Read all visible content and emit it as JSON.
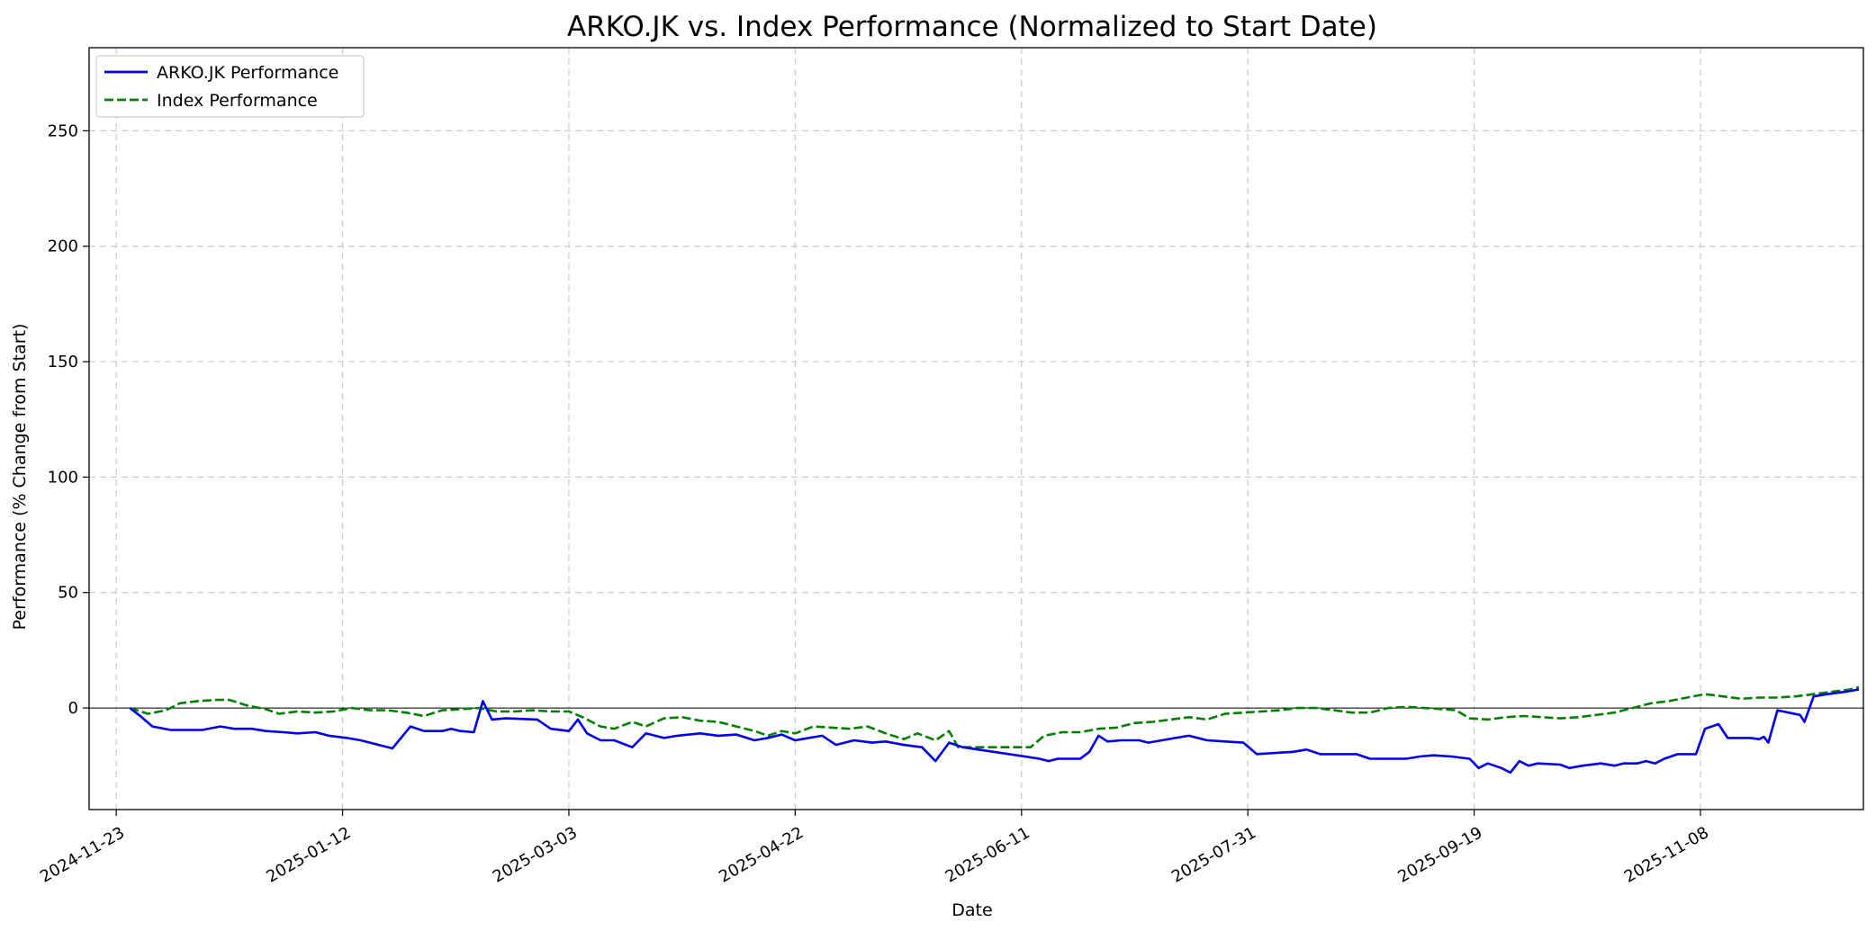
{
  "chart_data": {
    "type": "line",
    "title": "ARKO.JK vs. Index Performance (Normalized to Start Date)",
    "xlabel": "Date",
    "ylabel": "Performance (% Change from Start)",
    "xlim": [
      "2024-11-17",
      "2025-12-14"
    ],
    "ylim": [
      -44,
      286
    ],
    "x_ticks": [
      "2024-11-23",
      "2025-01-12",
      "2025-03-03",
      "2025-04-22",
      "2025-06-11",
      "2025-07-31",
      "2025-09-19",
      "2025-11-08"
    ],
    "y_ticks": [
      0,
      50,
      100,
      150,
      200,
      250
    ],
    "grid": true,
    "zero_line": true,
    "legend_position": "upper-left",
    "colors": {
      "arko": "#0000ee",
      "index": "#008000"
    },
    "series": [
      {
        "name": "ARKO.JK Performance",
        "style": "solid",
        "points": [
          [
            "2024-11-26",
            0
          ],
          [
            "2024-11-28",
            -3
          ],
          [
            "2024-12-01",
            -8
          ],
          [
            "2024-12-05",
            -9.5
          ],
          [
            "2024-12-08",
            -9.5
          ],
          [
            "2024-12-12",
            -9.5
          ],
          [
            "2024-12-16",
            -8
          ],
          [
            "2024-12-19",
            -9
          ],
          [
            "2024-12-23",
            -9
          ],
          [
            "2024-12-26",
            -10
          ],
          [
            "2024-12-30",
            -10.5
          ],
          [
            "2025-01-02",
            -11
          ],
          [
            "2025-01-06",
            -10.5
          ],
          [
            "2025-01-09",
            -12
          ],
          [
            "2025-01-13",
            -13
          ],
          [
            "2025-01-16",
            -14
          ],
          [
            "2025-01-20",
            -16
          ],
          [
            "2025-01-23",
            -17.5
          ],
          [
            "2025-01-27",
            -8
          ],
          [
            "2025-01-30",
            -10
          ],
          [
            "2025-02-03",
            -10
          ],
          [
            "2025-02-05",
            -9
          ],
          [
            "2025-02-07",
            -10
          ],
          [
            "2025-02-10",
            -10.5
          ],
          [
            "2025-02-12",
            3
          ],
          [
            "2025-02-14",
            -5
          ],
          [
            "2025-02-17",
            -4.5
          ],
          [
            "2025-02-24",
            -5
          ],
          [
            "2025-02-27",
            -9
          ],
          [
            "2025-03-03",
            -10
          ],
          [
            "2025-03-05",
            -5
          ],
          [
            "2025-03-07",
            -11
          ],
          [
            "2025-03-10",
            -14
          ],
          [
            "2025-03-13",
            -14
          ],
          [
            "2025-03-17",
            -17
          ],
          [
            "2025-03-20",
            -11
          ],
          [
            "2025-03-24",
            -13
          ],
          [
            "2025-03-27",
            -12
          ],
          [
            "2025-04-01",
            -11
          ],
          [
            "2025-04-05",
            -12
          ],
          [
            "2025-04-09",
            -11.5
          ],
          [
            "2025-04-13",
            -14
          ],
          [
            "2025-04-16",
            -13
          ],
          [
            "2025-04-19",
            -11.5
          ],
          [
            "2025-04-22",
            -14
          ],
          [
            "2025-04-25",
            -13
          ],
          [
            "2025-04-28",
            -12
          ],
          [
            "2025-05-01",
            -16
          ],
          [
            "2025-05-05",
            -14
          ],
          [
            "2025-05-09",
            -15
          ],
          [
            "2025-05-12",
            -14.5
          ],
          [
            "2025-05-16",
            -16
          ],
          [
            "2025-05-20",
            -17
          ],
          [
            "2025-05-23",
            -23
          ],
          [
            "2025-05-26",
            -15
          ],
          [
            "2025-05-29",
            -17
          ],
          [
            "2025-06-15",
            -22
          ],
          [
            "2025-06-17",
            -23
          ],
          [
            "2025-06-19",
            -22
          ],
          [
            "2025-06-24",
            -22
          ],
          [
            "2025-06-26",
            -19
          ],
          [
            "2025-06-28",
            -12
          ],
          [
            "2025-06-30",
            -14.5
          ],
          [
            "2025-07-03",
            -14
          ],
          [
            "2025-07-07",
            -14
          ],
          [
            "2025-07-09",
            -15
          ],
          [
            "2025-07-12",
            -14
          ],
          [
            "2025-07-15",
            -13
          ],
          [
            "2025-07-18",
            -12
          ],
          [
            "2025-07-22",
            -14
          ],
          [
            "2025-07-26",
            -14.5
          ],
          [
            "2025-07-30",
            -15
          ],
          [
            "2025-08-02",
            -20
          ],
          [
            "2025-08-06",
            -19.5
          ],
          [
            "2025-08-10",
            -19
          ],
          [
            "2025-08-13",
            -18
          ],
          [
            "2025-08-16",
            -20
          ],
          [
            "2025-08-20",
            -20
          ],
          [
            "2025-08-24",
            -20
          ],
          [
            "2025-08-27",
            -22
          ],
          [
            "2025-08-31",
            -22
          ],
          [
            "2025-09-04",
            -22
          ],
          [
            "2025-09-07",
            -21
          ],
          [
            "2025-09-10",
            -20.5
          ],
          [
            "2025-09-14",
            -21
          ],
          [
            "2025-09-18",
            -22
          ],
          [
            "2025-09-20",
            -26
          ],
          [
            "2025-09-22",
            -24
          ],
          [
            "2025-09-25",
            -26
          ],
          [
            "2025-09-27",
            -28
          ],
          [
            "2025-09-29",
            -23
          ],
          [
            "2025-10-01",
            -25
          ],
          [
            "2025-10-03",
            -24
          ],
          [
            "2025-10-08",
            -24.5
          ],
          [
            "2025-10-10",
            -26
          ],
          [
            "2025-10-13",
            -25
          ],
          [
            "2025-10-17",
            -24
          ],
          [
            "2025-10-20",
            -25
          ],
          [
            "2025-10-22",
            -24
          ],
          [
            "2025-10-25",
            -24
          ],
          [
            "2025-10-27",
            -23
          ],
          [
            "2025-10-29",
            -24
          ],
          [
            "2025-10-31",
            -22
          ],
          [
            "2025-11-03",
            -20
          ],
          [
            "2025-11-07",
            -20
          ],
          [
            "2025-11-09",
            -9
          ],
          [
            "2025-11-12",
            -7
          ],
          [
            "2025-11-14",
            -13
          ],
          [
            "2025-11-19",
            -13
          ],
          [
            "2025-11-21",
            -13.5
          ],
          [
            "2025-11-22",
            -12.5
          ],
          [
            "2025-11-23",
            -15
          ],
          [
            "2025-11-25",
            -1
          ],
          [
            "2025-11-30",
            -3
          ],
          [
            "2025-12-01",
            -6
          ],
          [
            "2025-12-03",
            5
          ],
          [
            "2025-12-06",
            6
          ],
          [
            "2025-12-10",
            7
          ],
          [
            "2025-12-13",
            8
          ]
        ]
      },
      {
        "name": "Index Performance",
        "style": "dashed",
        "points": [
          [
            "2024-11-26",
            0
          ],
          [
            "2024-11-30",
            -2.5
          ],
          [
            "2024-12-04",
            -1
          ],
          [
            "2024-12-07",
            2
          ],
          [
            "2024-12-11",
            3
          ],
          [
            "2024-12-15",
            3.5
          ],
          [
            "2024-12-18",
            3.5
          ],
          [
            "2024-12-22",
            1
          ],
          [
            "2024-12-26",
            -0.5
          ],
          [
            "2024-12-29",
            -2.5
          ],
          [
            "2025-01-02",
            -1.5
          ],
          [
            "2025-01-06",
            -2
          ],
          [
            "2025-01-10",
            -1.5
          ],
          [
            "2025-01-14",
            0
          ],
          [
            "2025-01-18",
            -1
          ],
          [
            "2025-01-22",
            -1
          ],
          [
            "2025-01-26",
            -2
          ],
          [
            "2025-01-30",
            -3.5
          ],
          [
            "2025-02-03",
            -1
          ],
          [
            "2025-02-07",
            -0.5
          ],
          [
            "2025-02-11",
            0
          ],
          [
            "2025-02-15",
            -1.5
          ],
          [
            "2025-02-19",
            -1.5
          ],
          [
            "2025-02-23",
            -1
          ],
          [
            "2025-02-27",
            -1.5
          ],
          [
            "2025-03-03",
            -1.5
          ],
          [
            "2025-03-06",
            -4
          ],
          [
            "2025-03-10",
            -8
          ],
          [
            "2025-03-13",
            -9
          ],
          [
            "2025-03-17",
            -6
          ],
          [
            "2025-03-20",
            -8
          ],
          [
            "2025-03-24",
            -4.5
          ],
          [
            "2025-03-28",
            -4
          ],
          [
            "2025-04-01",
            -5.5
          ],
          [
            "2025-04-05",
            -6
          ],
          [
            "2025-04-09",
            -8
          ],
          [
            "2025-04-13",
            -10
          ],
          [
            "2025-04-16",
            -12
          ],
          [
            "2025-04-19",
            -10
          ],
          [
            "2025-04-22",
            -11
          ],
          [
            "2025-04-26",
            -8
          ],
          [
            "2025-04-30",
            -8.5
          ],
          [
            "2025-05-04",
            -9
          ],
          [
            "2025-05-08",
            -8
          ],
          [
            "2025-05-12",
            -11
          ],
          [
            "2025-05-16",
            -13.5
          ],
          [
            "2025-05-19",
            -11
          ],
          [
            "2025-05-23",
            -14
          ],
          [
            "2025-05-26",
            -10
          ],
          [
            "2025-05-28",
            -17
          ],
          [
            "2025-06-09",
            -17
          ],
          [
            "2025-06-13",
            -17
          ],
          [
            "2025-06-16",
            -12
          ],
          [
            "2025-06-20",
            -10.5
          ],
          [
            "2025-06-24",
            -10.5
          ],
          [
            "2025-06-28",
            -9
          ],
          [
            "2025-07-02",
            -8.5
          ],
          [
            "2025-07-06",
            -6.5
          ],
          [
            "2025-07-10",
            -6
          ],
          [
            "2025-07-14",
            -5
          ],
          [
            "2025-07-18",
            -4
          ],
          [
            "2025-07-22",
            -5
          ],
          [
            "2025-07-26",
            -2.5
          ],
          [
            "2025-07-30",
            -2
          ],
          [
            "2025-08-03",
            -1.5
          ],
          [
            "2025-08-07",
            -1
          ],
          [
            "2025-08-11",
            0
          ],
          [
            "2025-08-15",
            0
          ],
          [
            "2025-08-19",
            -1
          ],
          [
            "2025-08-23",
            -2
          ],
          [
            "2025-08-27",
            -2
          ],
          [
            "2025-08-31",
            0
          ],
          [
            "2025-09-04",
            0.5
          ],
          [
            "2025-09-08",
            0
          ],
          [
            "2025-09-12",
            -0.5
          ],
          [
            "2025-09-15",
            -1
          ],
          [
            "2025-09-18",
            -4.5
          ],
          [
            "2025-09-22",
            -5
          ],
          [
            "2025-09-26",
            -4
          ],
          [
            "2025-09-30",
            -3.5
          ],
          [
            "2025-10-04",
            -4
          ],
          [
            "2025-10-08",
            -4.5
          ],
          [
            "2025-10-12",
            -4
          ],
          [
            "2025-10-16",
            -3
          ],
          [
            "2025-10-20",
            -2
          ],
          [
            "2025-10-24",
            0
          ],
          [
            "2025-10-28",
            2
          ],
          [
            "2025-11-01",
            3
          ],
          [
            "2025-11-05",
            4.5
          ],
          [
            "2025-11-09",
            6
          ],
          [
            "2025-11-13",
            5
          ],
          [
            "2025-11-17",
            4
          ],
          [
            "2025-11-21",
            4.5
          ],
          [
            "2025-11-25",
            4.5
          ],
          [
            "2025-11-29",
            5
          ],
          [
            "2025-12-03",
            6
          ],
          [
            "2025-12-07",
            7
          ],
          [
            "2025-12-11",
            8
          ],
          [
            "2025-12-13",
            9
          ]
        ]
      }
    ]
  }
}
